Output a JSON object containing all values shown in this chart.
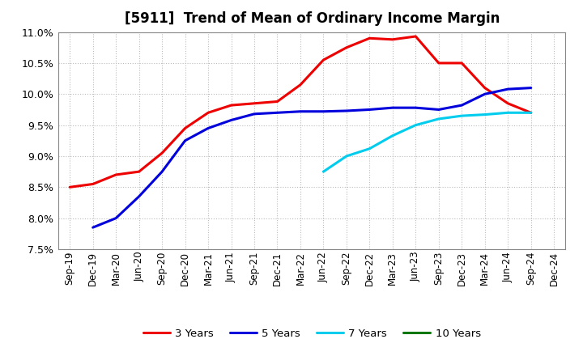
{
  "title": "[5911]  Trend of Mean of Ordinary Income Margin",
  "ylim": [
    0.075,
    0.11
  ],
  "yticks": [
    0.075,
    0.08,
    0.085,
    0.09,
    0.095,
    0.1,
    0.105,
    0.11
  ],
  "xtick_labels": [
    "Sep-19",
    "Dec-19",
    "Mar-20",
    "Jun-20",
    "Sep-20",
    "Dec-20",
    "Mar-21",
    "Jun-21",
    "Sep-21",
    "Dec-21",
    "Mar-22",
    "Jun-22",
    "Sep-22",
    "Dec-22",
    "Mar-23",
    "Jun-23",
    "Sep-23",
    "Dec-23",
    "Mar-24",
    "Jun-24",
    "Sep-24",
    "Dec-24"
  ],
  "series": {
    "3 Years": {
      "color": "#EE0000",
      "values": [
        0.085,
        0.0855,
        0.087,
        0.0875,
        0.0905,
        0.0945,
        0.097,
        0.0982,
        0.0985,
        0.0988,
        0.1015,
        0.1055,
        0.1075,
        0.109,
        0.1088,
        0.1093,
        0.105,
        0.105,
        0.101,
        0.0985,
        0.097,
        null
      ]
    },
    "5 Years": {
      "color": "#0000DD",
      "values": [
        null,
        0.0785,
        0.08,
        0.0835,
        0.0875,
        0.0925,
        0.0945,
        0.0958,
        0.0968,
        0.097,
        0.0972,
        0.0972,
        0.0973,
        0.0975,
        0.0978,
        0.0978,
        0.0975,
        0.0982,
        0.1,
        0.1008,
        0.101,
        null
      ]
    },
    "7 Years": {
      "color": "#00CCEE",
      "values": [
        null,
        null,
        null,
        null,
        null,
        null,
        null,
        null,
        null,
        null,
        null,
        0.0875,
        0.09,
        0.0912,
        0.0933,
        0.095,
        0.096,
        0.0965,
        0.0967,
        0.097,
        0.097,
        null
      ]
    },
    "10 Years": {
      "color": "#007700",
      "values": [
        null,
        null,
        null,
        null,
        null,
        null,
        null,
        null,
        null,
        null,
        null,
        null,
        null,
        null,
        null,
        null,
        null,
        null,
        null,
        null,
        null,
        null
      ]
    }
  },
  "background_color": "#FFFFFF",
  "plot_bg_color": "#FFFFFF",
  "grid_color": "#BBBBBB",
  "legend_labels": [
    "3 Years",
    "5 Years",
    "7 Years",
    "10 Years"
  ]
}
